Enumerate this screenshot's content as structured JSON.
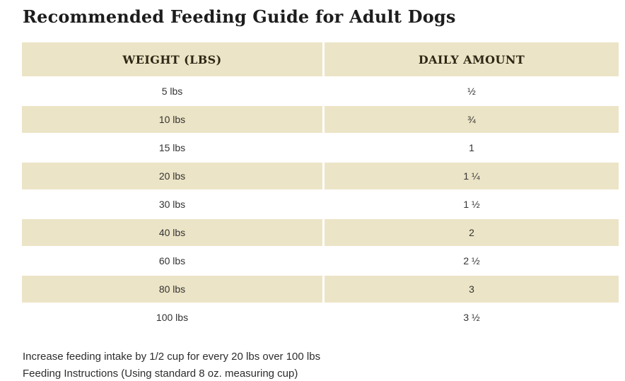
{
  "page": {
    "title": "Recommended Feeding Guide for Adult Dogs"
  },
  "table": {
    "columns": [
      {
        "label": "WEIGHT (LBS)"
      },
      {
        "label": "DAILY AMOUNT"
      }
    ],
    "rows": [
      {
        "weight": "5 lbs",
        "amount": "½"
      },
      {
        "weight": "10 lbs",
        "amount": "¾"
      },
      {
        "weight": "15 lbs",
        "amount": "1"
      },
      {
        "weight": "20 lbs",
        "amount": "1 ¼"
      },
      {
        "weight": "30 lbs",
        "amount": "1 ½"
      },
      {
        "weight": "40 lbs",
        "amount": "2"
      },
      {
        "weight": "60 lbs",
        "amount": "2 ½"
      },
      {
        "weight": "80 lbs",
        "amount": "3"
      },
      {
        "weight": "100 lbs",
        "amount": "3 ½"
      }
    ]
  },
  "notes": {
    "line1": "Increase feeding intake by 1/2 cup for every 20 lbs over 100 lbs",
    "line2": "Feeding Instructions (Using standard 8 oz. measuring cup)"
  },
  "colors": {
    "row_accent": "#ece4c6",
    "header_text": "#2e2715",
    "body_text": "#333333",
    "title_text": "#1d1d1d"
  }
}
